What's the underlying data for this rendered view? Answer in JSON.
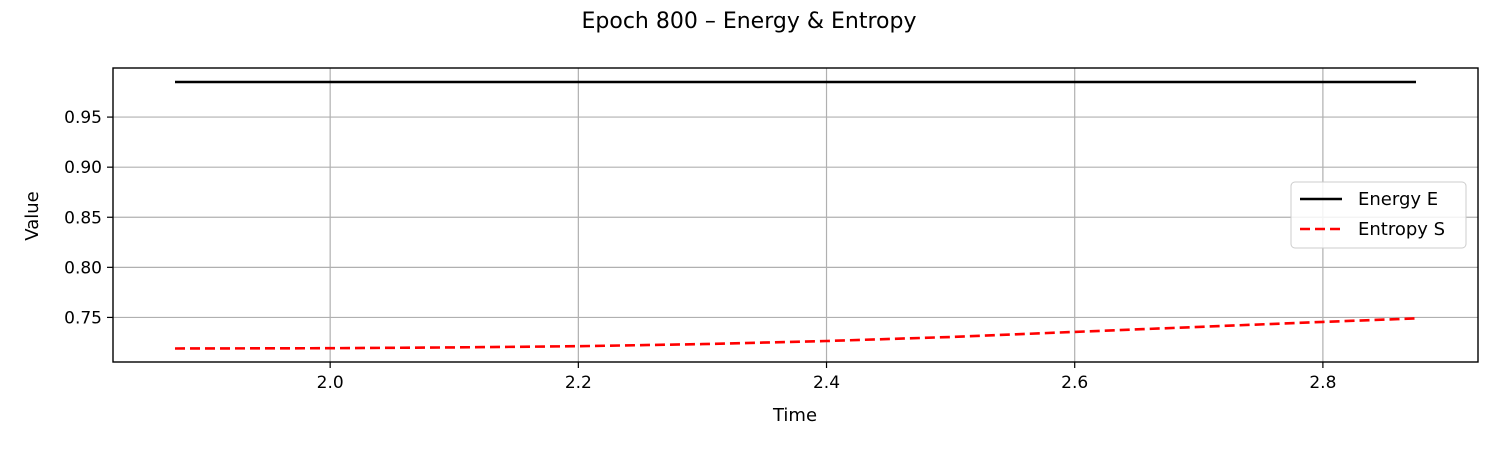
{
  "chart_data": {
    "type": "line",
    "title": "Epoch 800 – Energy & Entropy",
    "xlabel": "Time",
    "ylabel": "Value",
    "xlim": [
      1.825,
      2.925
    ],
    "ylim": [
      0.7055,
      0.999
    ],
    "xticks": [
      2.0,
      2.2,
      2.4,
      2.6,
      2.8
    ],
    "xtick_labels": [
      "2.0",
      "2.2",
      "2.4",
      "2.6",
      "2.8"
    ],
    "yticks": [
      0.75,
      0.8,
      0.85,
      0.9,
      0.95
    ],
    "ytick_labels": [
      "0.75",
      "0.80",
      "0.85",
      "0.90",
      "0.95"
    ],
    "grid": true,
    "legend_position": "center-right",
    "series": [
      {
        "name": "Energy E",
        "color": "#000000",
        "style": "solid",
        "x": [
          1.875,
          2.0,
          2.2,
          2.4,
          2.6,
          2.8,
          2.875
        ],
        "y": [
          0.985,
          0.985,
          0.985,
          0.985,
          0.985,
          0.985,
          0.985
        ]
      },
      {
        "name": "Entropy S",
        "color": "#ff0000",
        "style": "dashed",
        "x": [
          1.875,
          2.0,
          2.1,
          2.2,
          2.3,
          2.4,
          2.5,
          2.6,
          2.7,
          2.8,
          2.875
        ],
        "y": [
          0.719,
          0.7193,
          0.7201,
          0.7213,
          0.7234,
          0.7265,
          0.7305,
          0.7355,
          0.7405,
          0.7455,
          0.749
        ]
      }
    ]
  }
}
